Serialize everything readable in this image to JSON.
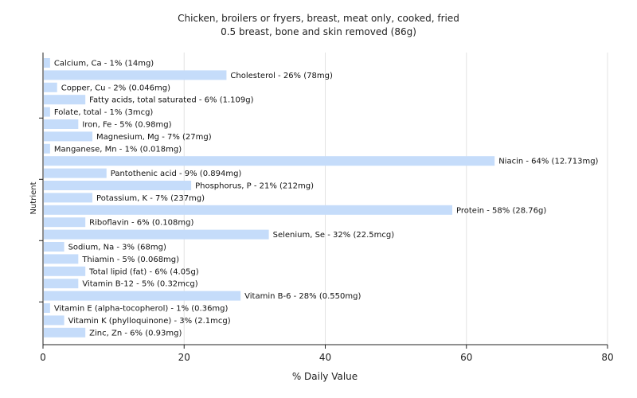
{
  "chart_data": {
    "type": "bar",
    "orientation": "horizontal",
    "title": "Chicken, broilers or fryers, breast, meat only, cooked, fried",
    "subtitle": "0.5 breast, bone and skin removed (86g)",
    "xlabel": "% Daily Value",
    "ylabel": "Nutrient",
    "xlim": [
      0,
      80
    ],
    "xticks": [
      "0",
      "20",
      "40",
      "60",
      "80"
    ],
    "grid": true,
    "bar_color": "#c5dcfa",
    "categories": [
      "Calcium, Ca",
      "Cholesterol",
      "Copper, Cu",
      "Fatty acids, total saturated",
      "Folate, total",
      "Iron, Fe",
      "Magnesium, Mg",
      "Manganese, Mn",
      "Niacin",
      "Pantothenic acid",
      "Phosphorus, P",
      "Potassium, K",
      "Protein",
      "Riboflavin",
      "Selenium, Se",
      "Sodium, Na",
      "Thiamin",
      "Total lipid (fat)",
      "Vitamin B-12",
      "Vitamin B-6",
      "Vitamin E (alpha-tocopherol)",
      "Vitamin K (phylloquinone)",
      "Zinc, Zn"
    ],
    "values": [
      1,
      26,
      2,
      6,
      1,
      5,
      7,
      1,
      64,
      9,
      21,
      7,
      58,
      6,
      32,
      3,
      5,
      6,
      5,
      28,
      1,
      3,
      6
    ],
    "labels": [
      "Calcium, Ca - 1% (14mg)",
      "Cholesterol - 26% (78mg)",
      "Copper, Cu - 2% (0.046mg)",
      "Fatty acids, total saturated - 6% (1.109g)",
      "Folate, total - 1% (3mcg)",
      "Iron, Fe - 5% (0.98mg)",
      "Magnesium, Mg - 7% (27mg)",
      "Manganese, Mn - 1% (0.018mg)",
      "Niacin - 64% (12.713mg)",
      "Pantothenic acid - 9% (0.894mg)",
      "Phosphorus, P - 21% (212mg)",
      "Potassium, K - 7% (237mg)",
      "Protein - 58% (28.76g)",
      "Riboflavin - 6% (0.108mg)",
      "Selenium, Se - 32% (22.5mcg)",
      "Sodium, Na - 3% (68mg)",
      "Thiamin - 5% (0.068mg)",
      "Total lipid (fat) - 6% (4.05g)",
      "Vitamin B-12 - 5% (0.32mcg)",
      "Vitamin B-6 - 28% (0.550mg)",
      "Vitamin E (alpha-tocopherol) - 1% (0.36mg)",
      "Vitamin K (phylloquinone) - 3% (2.1mcg)",
      "Zinc, Zn - 6% (0.93mg)"
    ]
  }
}
